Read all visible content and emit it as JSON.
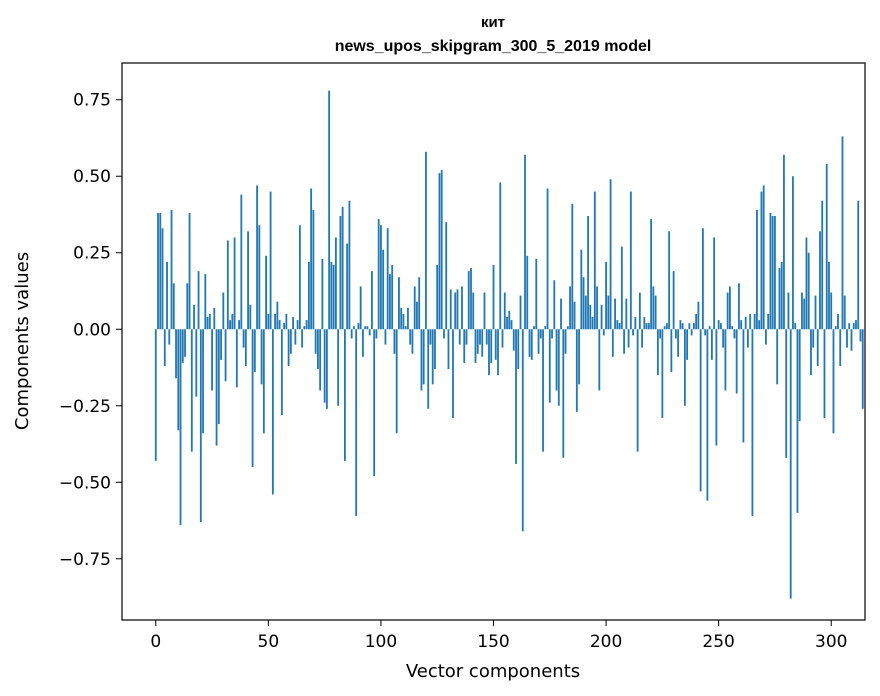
{
  "chart_data": {
    "type": "bar",
    "title": "кит",
    "subtitle": "news_upos_skipgram_300_5_2019 model",
    "xlabel": "Vector components",
    "ylabel": "Components values",
    "xlim": [
      -15,
      315
    ],
    "ylim": [
      -0.95,
      0.87
    ],
    "xticks": [
      0,
      50,
      100,
      150,
      200,
      250,
      300
    ],
    "yticks": [
      -0.75,
      -0.5,
      -0.25,
      0.0,
      0.25,
      0.5,
      0.75
    ],
    "ytick_labels": [
      "−0.75",
      "−0.50",
      "−0.25",
      "0.00",
      "0.25",
      "0.50",
      "0.75"
    ],
    "bar_color": "#1f77b4",
    "grid": false,
    "series": [
      {
        "name": "кит",
        "values": [
          -0.43,
          0.38,
          0.38,
          0.33,
          -0.12,
          0.22,
          -0.05,
          0.39,
          0.15,
          -0.16,
          -0.33,
          -0.64,
          -0.11,
          -0.09,
          0.15,
          0.38,
          -0.4,
          0.08,
          -0.22,
          0.19,
          -0.63,
          -0.34,
          0.18,
          0.04,
          0.05,
          -0.2,
          0.07,
          -0.38,
          -0.31,
          -0.1,
          0.12,
          -0.17,
          0.29,
          0.03,
          0.05,
          0.3,
          -0.19,
          0.03,
          0.44,
          -0.06,
          -0.12,
          0.32,
          0.08,
          -0.45,
          -0.14,
          0.47,
          0.34,
          -0.18,
          -0.34,
          0.24,
          0.05,
          0.45,
          -0.54,
          0.05,
          0.09,
          0.03,
          -0.28,
          0.02,
          0.05,
          -0.12,
          -0.08,
          0.04,
          -0.05,
          0.03,
          0.34,
          -0.06,
          0.01,
          0.03,
          0.22,
          0.46,
          0.39,
          -0.08,
          -0.13,
          -0.2,
          0.23,
          -0.24,
          -0.26,
          0.78,
          0.22,
          0.21,
          0.3,
          -0.25,
          0.37,
          0.4,
          -0.43,
          0.28,
          0.42,
          -0.03,
          0.01,
          -0.61,
          0.02,
          0.14,
          -0.09,
          0.01,
          0.01,
          -0.02,
          0.19,
          -0.48,
          -0.03,
          0.36,
          0.34,
          0.26,
          -0.05,
          0.33,
          0.18,
          0.21,
          -0.08,
          -0.34,
          0.17,
          0.07,
          0.05,
          0.01,
          0.07,
          -0.05,
          -0.08,
          0.14,
          0.09,
          0.17,
          -0.2,
          -0.18,
          0.58,
          -0.26,
          -0.05,
          -0.18,
          -0.13,
          0.21,
          0.51,
          0.52,
          -0.03,
          0.35,
          -0.13,
          0.13,
          -0.29,
          0.12,
          0.13,
          -0.05,
          0.14,
          -0.11,
          -0.05,
          0.19,
          0.2,
          0.12,
          -0.11,
          -0.08,
          -0.05,
          -0.09,
          0.12,
          -0.05,
          -0.15,
          -0.11,
          0.21,
          -0.1,
          -0.15,
          0.48,
          -0.06,
          0.12,
          0.04,
          0.06,
          0.03,
          -0.07,
          -0.44,
          -0.13,
          0.11,
          -0.66,
          0.57,
          0.24,
          -0.09,
          -0.1,
          0.01,
          0.23,
          -0.08,
          -0.03,
          -0.4,
          0.01,
          0.46,
          -0.24,
          -0.03,
          0.16,
          -0.2,
          -0.25,
          0.1,
          -0.42,
          -0.08,
          0.01,
          0.14,
          0.41,
          0.09,
          -0.27,
          -0.18,
          0.26,
          0.17,
          0.11,
          0.37,
          0.08,
          0.04,
          0.45,
          0.14,
          -0.2,
          0.08,
          -0.02,
          0.22,
          0.11,
          0.49,
          -0.09,
          0.1,
          0.03,
          0.02,
          0.27,
          -0.08,
          0.1,
          -0.06,
          0.45,
          -0.02,
          0.04,
          -0.4,
          0.12,
          -0.06,
          0.04,
          0.02,
          0.02,
          0.36,
          0.14,
          0.11,
          -0.15,
          -0.03,
          -0.29,
          0.01,
          0.02,
          0.32,
          -0.14,
          0.19,
          -0.03,
          -0.09,
          0.03,
          0.02,
          -0.25,
          -0.1,
          0.02,
          -0.02,
          0.02,
          0.05,
          0.09,
          -0.53,
          0.33,
          -0.02,
          -0.56,
          0.01,
          -0.1,
          0.3,
          -0.38,
          0.03,
          0.02,
          -0.06,
          -0.2,
          0.12,
          0.14,
          0.01,
          -0.03,
          -0.21,
          0.15,
          0.03,
          -0.37,
          0.04,
          -0.06,
          0.05,
          -0.61,
          0.05,
          0.39,
          0.03,
          0.45,
          0.47,
          -0.05,
          0.05,
          0.38,
          0.37,
          0.37,
          -0.18,
          0.2,
          0.22,
          0.57,
          -0.42,
          0.12,
          -0.88,
          0.5,
          0.02,
          -0.6,
          -0.3,
          0.12,
          0.1,
          0.3,
          0.25,
          -0.15,
          -0.06,
          0.11,
          -0.12,
          0.32,
          0.42,
          -0.29,
          0.54,
          0.22,
          0.12,
          -0.34,
          0.01,
          0.05,
          -0.12,
          0.63,
          0.11,
          -0.06,
          0.02,
          -0.07,
          0.02,
          0.03,
          0.42,
          -0.04,
          -0.26
        ]
      }
    ]
  }
}
